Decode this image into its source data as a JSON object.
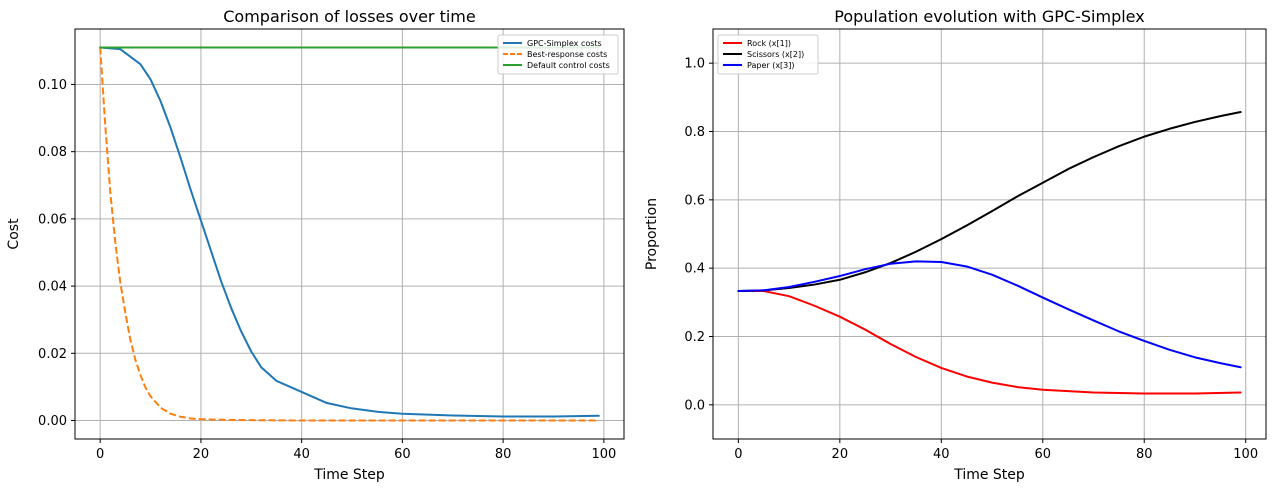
{
  "chart_data": [
    {
      "type": "line",
      "title": "Comparison of losses over time",
      "xlabel": "Time Step",
      "ylabel": "Cost",
      "xlim": [
        -5,
        104
      ],
      "ylim": [
        -0.0055,
        0.1165
      ],
      "xticks": [
        0,
        20,
        40,
        60,
        80,
        100
      ],
      "yticks": [
        0.0,
        0.02,
        0.04,
        0.06,
        0.08,
        0.1
      ],
      "ytick_labels": [
        "0.00",
        "0.02",
        "0.04",
        "0.06",
        "0.08",
        "0.10"
      ],
      "grid": true,
      "legend": "top-right",
      "series": [
        {
          "name": "GPC-Simplex costs",
          "color": "#1f77b4",
          "dash": "solid",
          "x": [
            0,
            4,
            8,
            10,
            12,
            14,
            16,
            18,
            20,
            22,
            24,
            26,
            28,
            30,
            32,
            35,
            40,
            45,
            50,
            55,
            60,
            70,
            80,
            90,
            99
          ],
          "y": [
            0.111,
            0.1105,
            0.106,
            0.1015,
            0.095,
            0.087,
            0.078,
            0.0685,
            0.0595,
            0.0505,
            0.0415,
            0.0335,
            0.0265,
            0.0205,
            0.0158,
            0.0118,
            0.0085,
            0.0052,
            0.0036,
            0.0026,
            0.002,
            0.0015,
            0.0012,
            0.0012,
            0.0014
          ]
        },
        {
          "name": "Best-response costs",
          "color": "#ff7f0e",
          "dash": "dashed",
          "x": [
            0,
            1,
            2,
            3,
            4,
            5,
            6,
            7,
            8,
            9,
            10,
            12,
            14,
            16,
            18,
            20,
            25,
            30,
            40,
            60,
            80,
            99
          ],
          "y": [
            0.111,
            0.088,
            0.068,
            0.053,
            0.041,
            0.032,
            0.024,
            0.018,
            0.0135,
            0.0098,
            0.0072,
            0.0038,
            0.002,
            0.0011,
            0.0006,
            0.0004,
            0.0002,
            0.0001,
            0.0,
            0.0,
            0.0,
            0.0
          ]
        },
        {
          "name": "Default control costs",
          "color": "#2ca02c",
          "dash": "solid",
          "x": [
            0,
            99
          ],
          "y": [
            0.111,
            0.111
          ]
        }
      ]
    },
    {
      "type": "line",
      "title": "Population evolution with GPC-Simplex",
      "xlabel": "Time Step",
      "ylabel": "Proportion",
      "xlim": [
        -5,
        104
      ],
      "ylim": [
        -0.1,
        1.1
      ],
      "xticks": [
        0,
        20,
        40,
        60,
        80,
        100
      ],
      "yticks": [
        0.0,
        0.2,
        0.4,
        0.6,
        0.8,
        1.0
      ],
      "ytick_labels": [
        "0.0",
        "0.2",
        "0.4",
        "0.6",
        "0.8",
        "1.0"
      ],
      "grid": true,
      "legend": "top-left",
      "series": [
        {
          "name": "Rock (x[1])",
          "color": "#ff0000",
          "dash": "solid",
          "x": [
            0,
            5,
            10,
            15,
            20,
            25,
            30,
            35,
            40,
            45,
            50,
            55,
            60,
            70,
            80,
            90,
            99
          ],
          "y": [
            0.333,
            0.333,
            0.318,
            0.29,
            0.258,
            0.22,
            0.178,
            0.14,
            0.108,
            0.083,
            0.065,
            0.052,
            0.044,
            0.036,
            0.033,
            0.033,
            0.036
          ]
        },
        {
          "name": "Scissors (x[2])",
          "color": "#000000",
          "dash": "solid",
          "x": [
            0,
            5,
            10,
            15,
            20,
            25,
            30,
            35,
            40,
            45,
            50,
            55,
            60,
            65,
            70,
            75,
            80,
            85,
            90,
            95,
            99
          ],
          "y": [
            0.333,
            0.335,
            0.342,
            0.352,
            0.366,
            0.388,
            0.415,
            0.448,
            0.485,
            0.525,
            0.567,
            0.61,
            0.65,
            0.69,
            0.725,
            0.757,
            0.785,
            0.808,
            0.828,
            0.845,
            0.857
          ]
        },
        {
          "name": "Paper (x[3])",
          "color": "#0000ff",
          "dash": "solid",
          "x": [
            0,
            5,
            10,
            15,
            20,
            25,
            30,
            35,
            40,
            45,
            50,
            55,
            60,
            65,
            70,
            75,
            80,
            85,
            90,
            95,
            99
          ],
          "y": [
            0.333,
            0.335,
            0.345,
            0.36,
            0.377,
            0.397,
            0.413,
            0.42,
            0.418,
            0.405,
            0.381,
            0.349,
            0.314,
            0.28,
            0.247,
            0.215,
            0.187,
            0.161,
            0.139,
            0.122,
            0.11
          ]
        }
      ]
    }
  ]
}
